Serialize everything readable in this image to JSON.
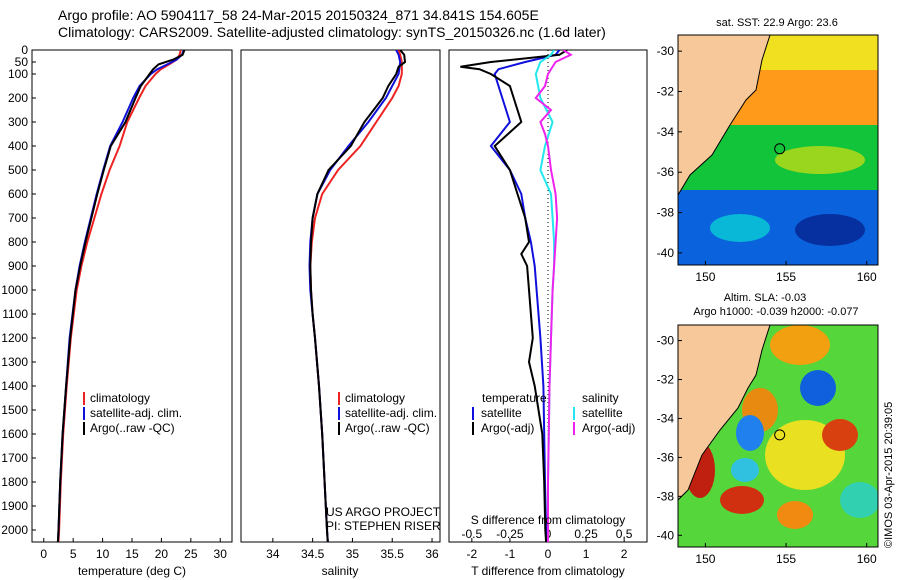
{
  "title": {
    "line1": "Argo profile: AO 5904117_58 24-Mar-2015 20150324_871 34.841S 154.605E",
    "line2": "Climatology: CARS2009. Satellite-adjusted climatology: synTS_20150326.nc (1.6d later)"
  },
  "depth_ticks": [
    0,
    50,
    100,
    200,
    300,
    400,
    500,
    600,
    700,
    800,
    900,
    1000,
    1100,
    1200,
    1300,
    1400,
    1500,
    1600,
    1700,
    1800,
    1900,
    2000
  ],
  "colors": {
    "red": "#ee2222",
    "blue": "#1010dd",
    "black": "#000000",
    "cyan": "#22e8ee",
    "magenta": "#ee22ee",
    "land": "#f7c99a"
  },
  "chart_data": [
    {
      "type": "line",
      "name": "temperature",
      "xlabel": "temperature (deg C)",
      "xlim": [
        -2,
        32
      ],
      "xticks": [
        0,
        5,
        10,
        15,
        20,
        25,
        30
      ],
      "ylim": [
        2050,
        0
      ],
      "legend": [
        "climatology",
        "satellite-adj. clim.",
        "Argo(..raw -QC)"
      ],
      "series": [
        {
          "name": "climatology",
          "color": "red",
          "depth": [
            0,
            20,
            40,
            60,
            80,
            100,
            150,
            200,
            300,
            400,
            500,
            600,
            700,
            800,
            900,
            1000,
            1200,
            1400,
            1600,
            1800,
            2000,
            2050
          ],
          "values": [
            23.3,
            23.1,
            22.6,
            21.3,
            19.9,
            19.0,
            17.3,
            16.2,
            14.2,
            12.9,
            11.2,
            9.8,
            8.6,
            7.4,
            6.4,
            5.6,
            4.6,
            3.9,
            3.3,
            2.9,
            2.6,
            2.5
          ]
        },
        {
          "name": "satellite-adj. clim.",
          "color": "blue",
          "depth": [
            0,
            20,
            40,
            60,
            80,
            100,
            150,
            200,
            300,
            400,
            500,
            600,
            700,
            800,
            900,
            1000,
            1200,
            1400,
            1600,
            1800,
            2000,
            2050
          ],
          "values": [
            23.8,
            23.5,
            22.6,
            21.0,
            19.3,
            18.2,
            16.3,
            15.2,
            13.4,
            11.3,
            10.1,
            9.0,
            8.0,
            7.0,
            6.1,
            5.4,
            4.4,
            3.8,
            3.2,
            2.8,
            2.5,
            2.4
          ]
        },
        {
          "name": "Argo(..raw -QC)",
          "color": "black",
          "depth": [
            0,
            20,
            40,
            60,
            80,
            100,
            150,
            200,
            300,
            400,
            500,
            600,
            700,
            800,
            900,
            1000,
            1200,
            1400,
            1600,
            1800,
            2000,
            2050
          ],
          "values": [
            23.9,
            23.6,
            22.0,
            19.5,
            18.6,
            18.0,
            16.5,
            15.6,
            13.9,
            11.4,
            10.2,
            9.1,
            8.1,
            7.1,
            6.2,
            5.4,
            4.5,
            3.8,
            3.2,
            2.8,
            2.5,
            2.4
          ]
        }
      ]
    },
    {
      "type": "line",
      "name": "salinity",
      "xlabel": "salinity",
      "xlim": [
        33.6,
        36.1
      ],
      "xticks": [
        34,
        34.5,
        35,
        35.5,
        36
      ],
      "ylim": [
        2050,
        0
      ],
      "legend": [
        "climatology",
        "satellite-adj. clim.",
        "Argo(..raw -QC)"
      ],
      "annotation": [
        "US ARGO PROJECT",
        "PI: STEPHEN RISER"
      ],
      "series": [
        {
          "name": "climatology",
          "color": "red",
          "depth": [
            0,
            20,
            50,
            100,
            150,
            200,
            300,
            400,
            500,
            600,
            700,
            800,
            900,
            1000,
            1100,
            1200,
            1400,
            1600,
            1800,
            2000,
            2050
          ],
          "values": [
            35.58,
            35.6,
            35.62,
            35.62,
            35.58,
            35.5,
            35.3,
            35.1,
            34.82,
            34.62,
            34.53,
            34.49,
            34.47,
            34.48,
            34.5,
            34.53,
            34.58,
            34.62,
            34.65,
            34.68,
            34.69
          ]
        },
        {
          "name": "satellite-adj. clim.",
          "color": "blue",
          "depth": [
            0,
            20,
            50,
            100,
            150,
            200,
            300,
            400,
            500,
            600,
            700,
            800,
            900,
            1000,
            1100,
            1200,
            1400,
            1600,
            1800,
            2000,
            2050
          ],
          "values": [
            35.55,
            35.58,
            35.6,
            35.58,
            35.5,
            35.42,
            35.2,
            34.95,
            34.72,
            34.56,
            34.5,
            34.47,
            34.46,
            34.47,
            34.5,
            34.53,
            34.58,
            34.62,
            34.65,
            34.68,
            34.69
          ]
        },
        {
          "name": "Argo(..raw -QC)",
          "color": "black",
          "depth": [
            0,
            20,
            50,
            70,
            100,
            150,
            200,
            300,
            400,
            500,
            600,
            700,
            800,
            900,
            1000,
            1100,
            1200,
            1400,
            1600,
            1800,
            2000,
            2050
          ],
          "values": [
            35.6,
            35.65,
            35.66,
            35.58,
            35.55,
            35.45,
            35.38,
            35.15,
            34.98,
            34.7,
            34.56,
            34.5,
            34.48,
            34.47,
            34.48,
            34.5,
            34.53,
            34.58,
            34.62,
            34.65,
            34.68,
            34.69
          ]
        }
      ]
    },
    {
      "type": "line",
      "name": "differences",
      "xlabel": "T difference from climatology",
      "x2label": "S difference from climatology",
      "xlim": [
        -2.6,
        2.6
      ],
      "xticks": [
        -2,
        -1,
        0,
        1,
        2
      ],
      "x2ticks": [
        -0.5,
        -0.25,
        0,
        0.25,
        0.5
      ],
      "ylim": [
        2050,
        0
      ],
      "legend_t": {
        "title": "temperature",
        "items": [
          "satellite",
          "Argo(-adj)"
        ]
      },
      "legend_s": {
        "title": "salinity",
        "items": [
          "satellite",
          "Argo(-adj)"
        ]
      },
      "series": [
        {
          "name": "temperature satellite",
          "color": "blue",
          "depth": [
            0,
            20,
            50,
            80,
            100,
            150,
            200,
            300,
            400,
            500,
            600,
            700,
            800,
            900,
            1000,
            1200,
            1400,
            1600,
            1800,
            2000,
            2050
          ],
          "values": [
            0.3,
            0.2,
            -0.6,
            -1.3,
            -1.4,
            -1.3,
            -1.2,
            -1.0,
            -1.5,
            -1.0,
            -0.7,
            -0.6,
            -0.45,
            -0.35,
            -0.3,
            -0.2,
            -0.12,
            -0.1,
            -0.08,
            -0.05,
            -0.05
          ]
        },
        {
          "name": "temperature Argo(-adj)",
          "color": "black",
          "depth": [
            0,
            20,
            50,
            70,
            80,
            100,
            150,
            200,
            300,
            400,
            500,
            600,
            700,
            800,
            850,
            900,
            1000,
            1100,
            1200,
            1300,
            1400,
            1600,
            1800,
            2000,
            2050
          ],
          "values": [
            0.5,
            0.3,
            -1.5,
            -2.3,
            -1.8,
            -1.5,
            -1.0,
            -0.9,
            -0.7,
            -1.4,
            -1.0,
            -0.8,
            -0.6,
            -0.5,
            -0.7,
            -0.55,
            -0.5,
            -0.45,
            -0.4,
            -0.5,
            -0.35,
            -0.15,
            -0.1,
            -0.07,
            -0.05
          ]
        },
        {
          "name": "salinity satellite",
          "color": "cyan",
          "depth": [
            0,
            20,
            50,
            100,
            200,
            300,
            400,
            500,
            600,
            700,
            800,
            900,
            1000,
            1200,
            1400,
            1600,
            1800,
            2000,
            2050
          ],
          "values": [
            0.04,
            0.02,
            -0.05,
            -0.08,
            -0.05,
            0.03,
            -0.02,
            -0.05,
            0.02,
            0.03,
            0.04,
            0.04,
            0.03,
            0.02,
            0.01,
            0.005,
            0.0,
            0.0,
            0.0
          ]
        },
        {
          "name": "salinity Argo(-adj)",
          "color": "magenta",
          "depth": [
            0,
            20,
            50,
            100,
            150,
            200,
            250,
            300,
            350,
            400,
            500,
            600,
            700,
            800,
            900,
            1000,
            1200,
            1400,
            1600,
            1800,
            2000,
            2050
          ],
          "values": [
            0.1,
            0.15,
            0.05,
            0.0,
            -0.02,
            -0.08,
            0.02,
            -0.05,
            -0.02,
            0.0,
            0.02,
            0.05,
            0.06,
            0.05,
            0.04,
            0.03,
            0.02,
            0.01,
            0.005,
            0.0,
            0.0,
            0.0
          ]
        }
      ]
    },
    {
      "type": "heatmap",
      "name": "sst-map",
      "title": "sat. SST: 22.9 Argo: 23.6",
      "xticks": [
        150,
        155,
        160
      ],
      "yticks": [
        -30,
        -32,
        -34,
        -36,
        -38,
        -40
      ],
      "xlim": [
        148.3,
        160.7
      ],
      "ylim": [
        -40.6,
        -29.2
      ],
      "marker": {
        "lon": 154.605,
        "lat": -34.841
      }
    },
    {
      "type": "heatmap",
      "name": "sla-map",
      "title_line1": "Altim. SLA: -0.03",
      "title_line2": "Argo h1000: -0.039 h2000: -0.077",
      "xticks": [
        150,
        155,
        160
      ],
      "yticks": [
        -30,
        -32,
        -34,
        -36,
        -38,
        -40
      ],
      "xlim": [
        148.3,
        160.7
      ],
      "ylim": [
        -40.6,
        -29.2
      ],
      "marker": {
        "lon": 154.605,
        "lat": -34.841
      }
    }
  ],
  "credit": "©IMOS 03-Apr-2015 20:39:05"
}
